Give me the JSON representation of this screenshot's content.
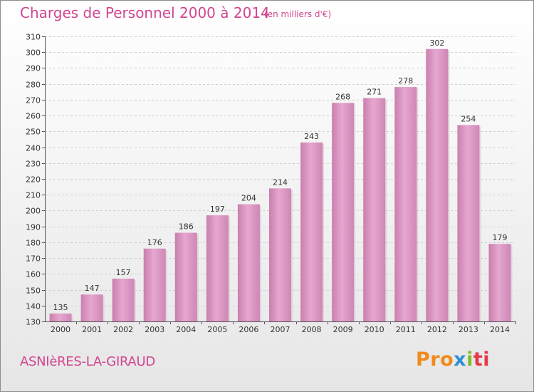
{
  "chart_data": {
    "type": "bar",
    "title": "Charges de Personnel 2000 à 2014",
    "subtitle": "(en milliers d'€)",
    "categories": [
      "2000",
      "2001",
      "2002",
      "2003",
      "2004",
      "2005",
      "2006",
      "2007",
      "2008",
      "2009",
      "2010",
      "2011",
      "2012",
      "2013",
      "2014"
    ],
    "values": [
      135,
      147,
      157,
      176,
      186,
      197,
      204,
      214,
      243,
      268,
      271,
      278,
      302,
      254,
      179
    ],
    "ylim": [
      130,
      310
    ],
    "yticks": [
      130,
      140,
      150,
      160,
      170,
      180,
      190,
      200,
      210,
      220,
      230,
      240,
      250,
      260,
      270,
      280,
      290,
      300,
      310
    ],
    "grid": true,
    "bar_color": "#e3a2cb"
  },
  "footer": {
    "commune": "ASNIèRES-LA-GIRAUD",
    "logo": [
      "Pro",
      "x",
      "i",
      "ti"
    ]
  }
}
